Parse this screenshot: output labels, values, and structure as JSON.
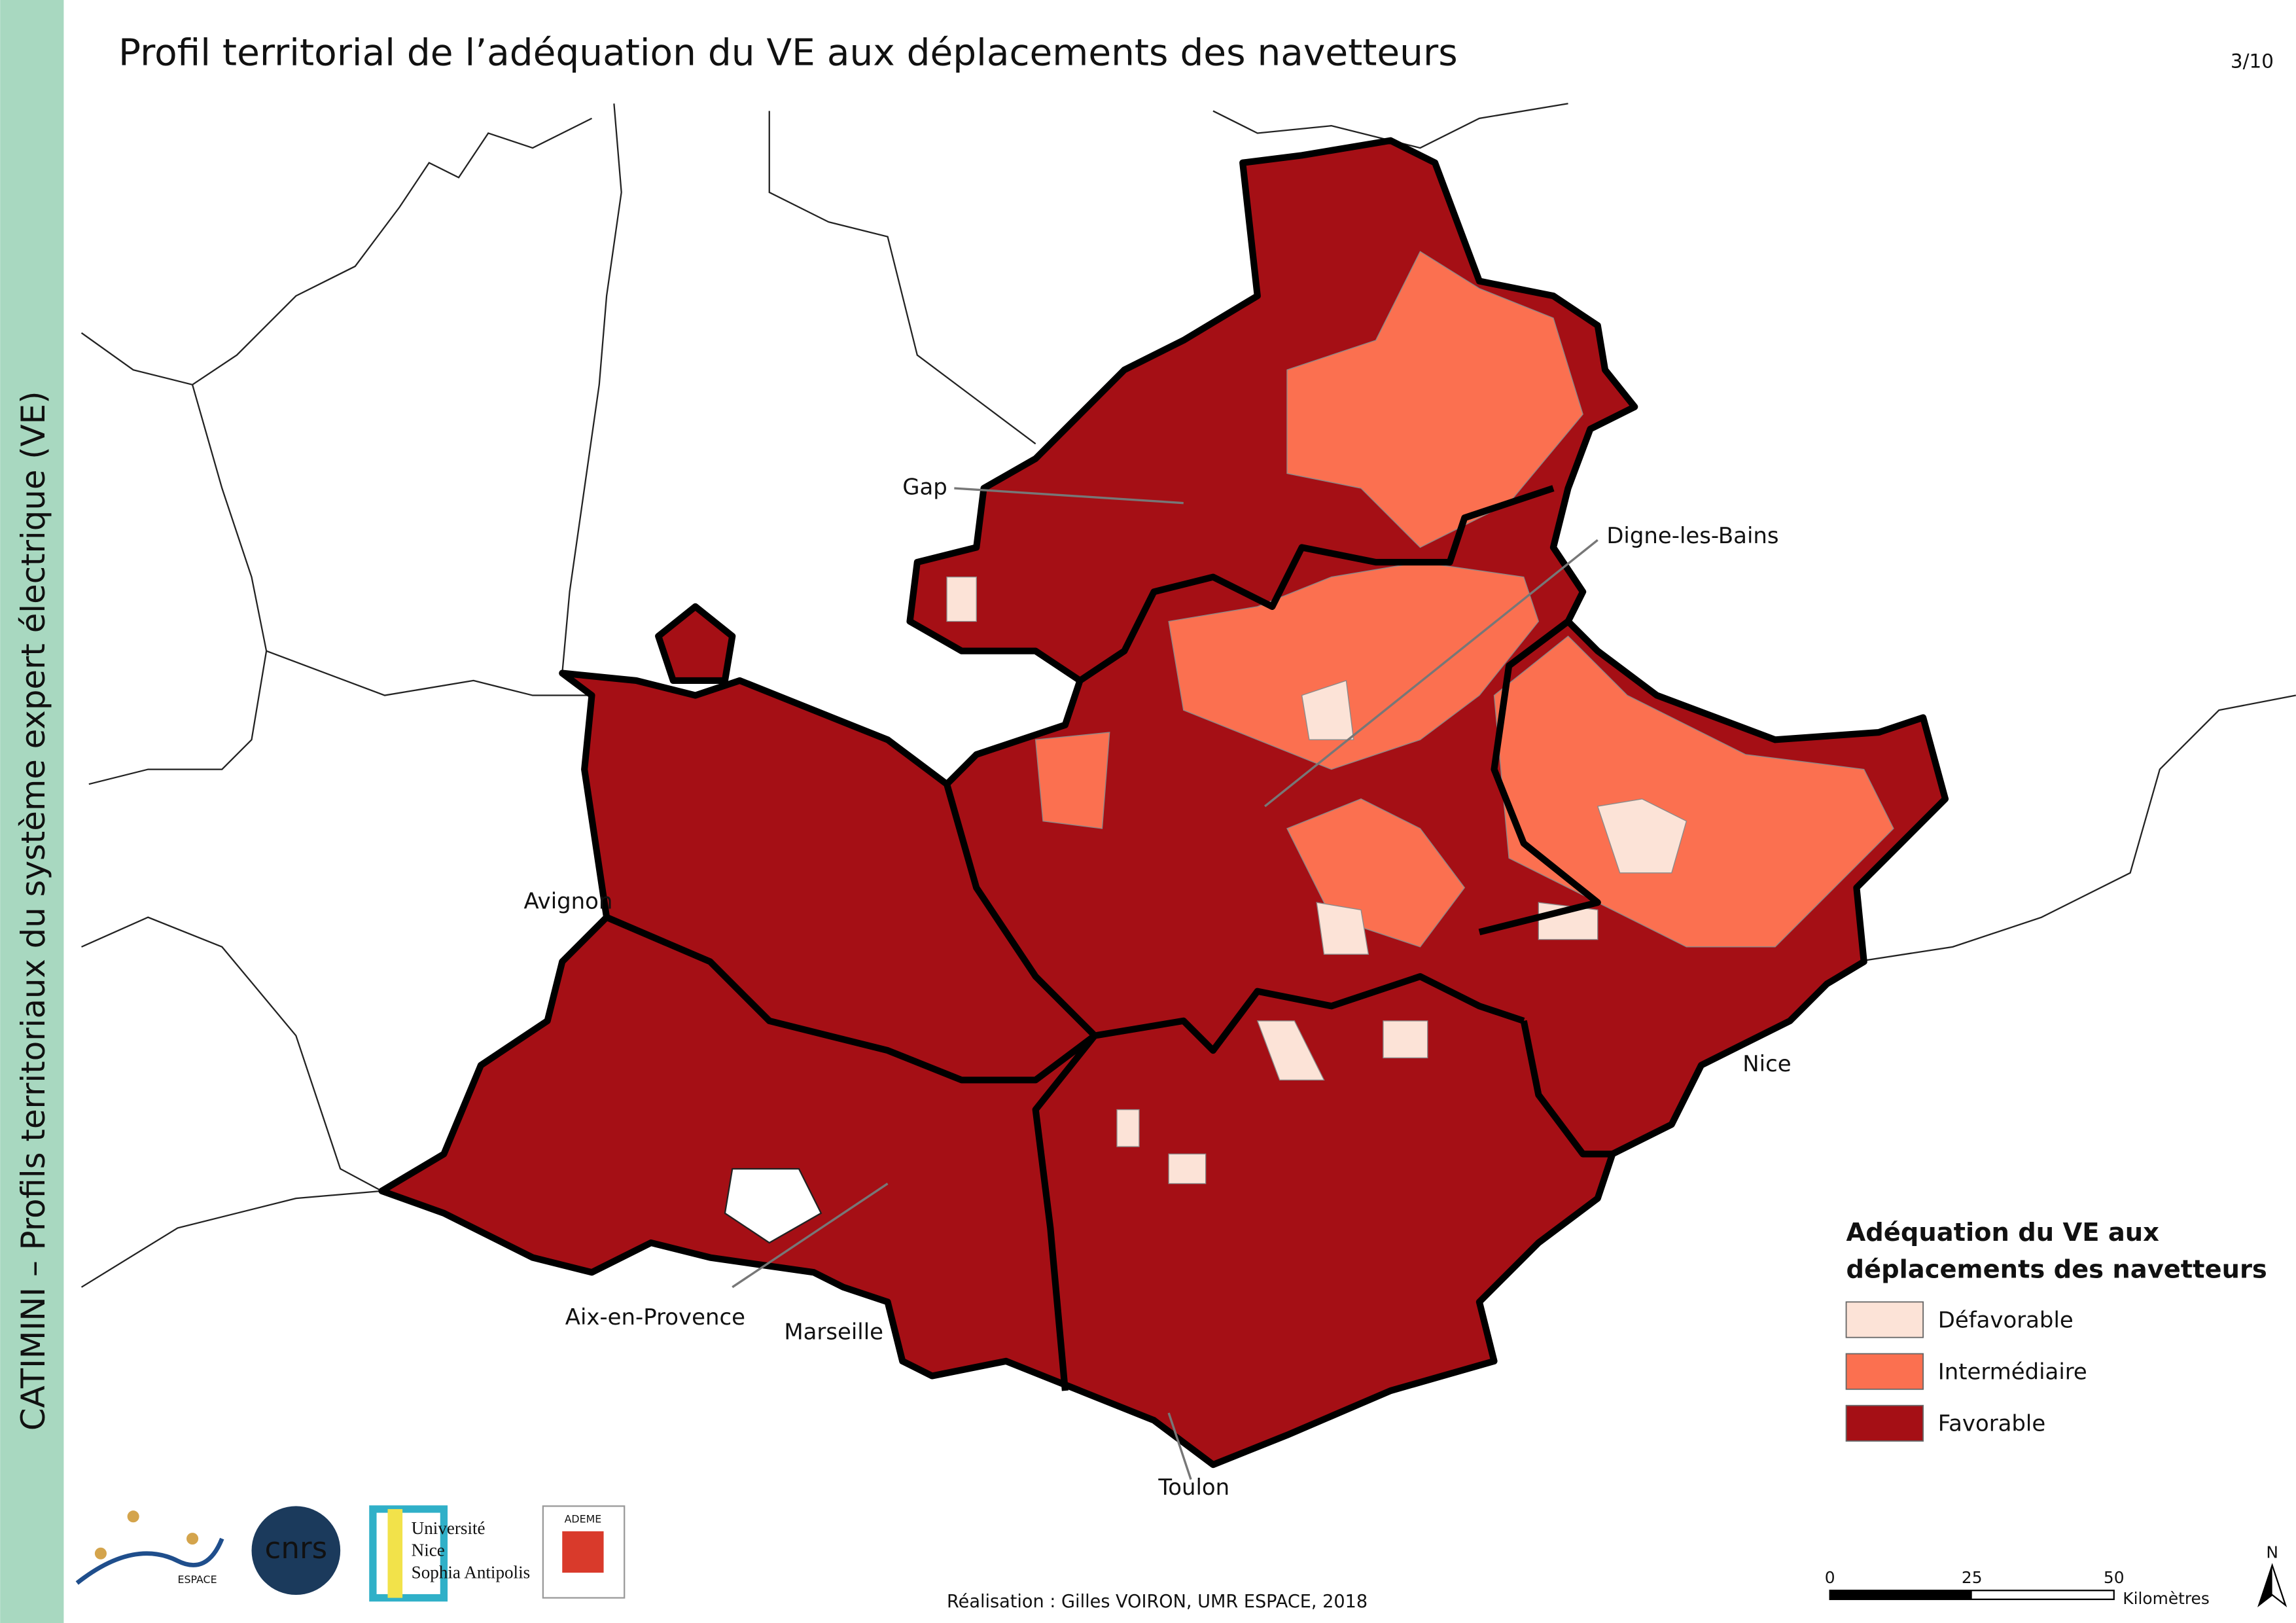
{
  "header": {
    "title": "Profil territorial de l’adéquation du VE aux déplacements des navetteurs",
    "page_number": "3/10"
  },
  "sidebar": {
    "text": "CATIMINI – Profils territoriaux du système expert électrique (VE)"
  },
  "cities": [
    "Gap",
    "Digne-les-Bains",
    "Avignon",
    "Nice",
    "Aix-en-Provence",
    "Marseille",
    "Toulon"
  ],
  "legend": {
    "title_line1": "Adéquation du VE aux",
    "title_line2": "déplacements des navetteurs",
    "items": [
      {
        "label": "Défavorable",
        "color": "#fce3d7"
      },
      {
        "label": "Intermédiaire",
        "color": "#fb7050"
      },
      {
        "label": "Favorable",
        "color": "#a50f15"
      }
    ]
  },
  "scale_bar": {
    "labels": [
      "0",
      "25",
      "50"
    ],
    "unit": "Kilomètres"
  },
  "north": "N",
  "logos": {
    "espace": "ESPACE",
    "cnrs": "cnrs",
    "universite": [
      "Université",
      "Nice",
      "Sophia Antipolis"
    ],
    "ademe": "ADEME"
  },
  "credit": "Réalisation : Gilles VOIRON, UMR ESPACE, 2018"
}
